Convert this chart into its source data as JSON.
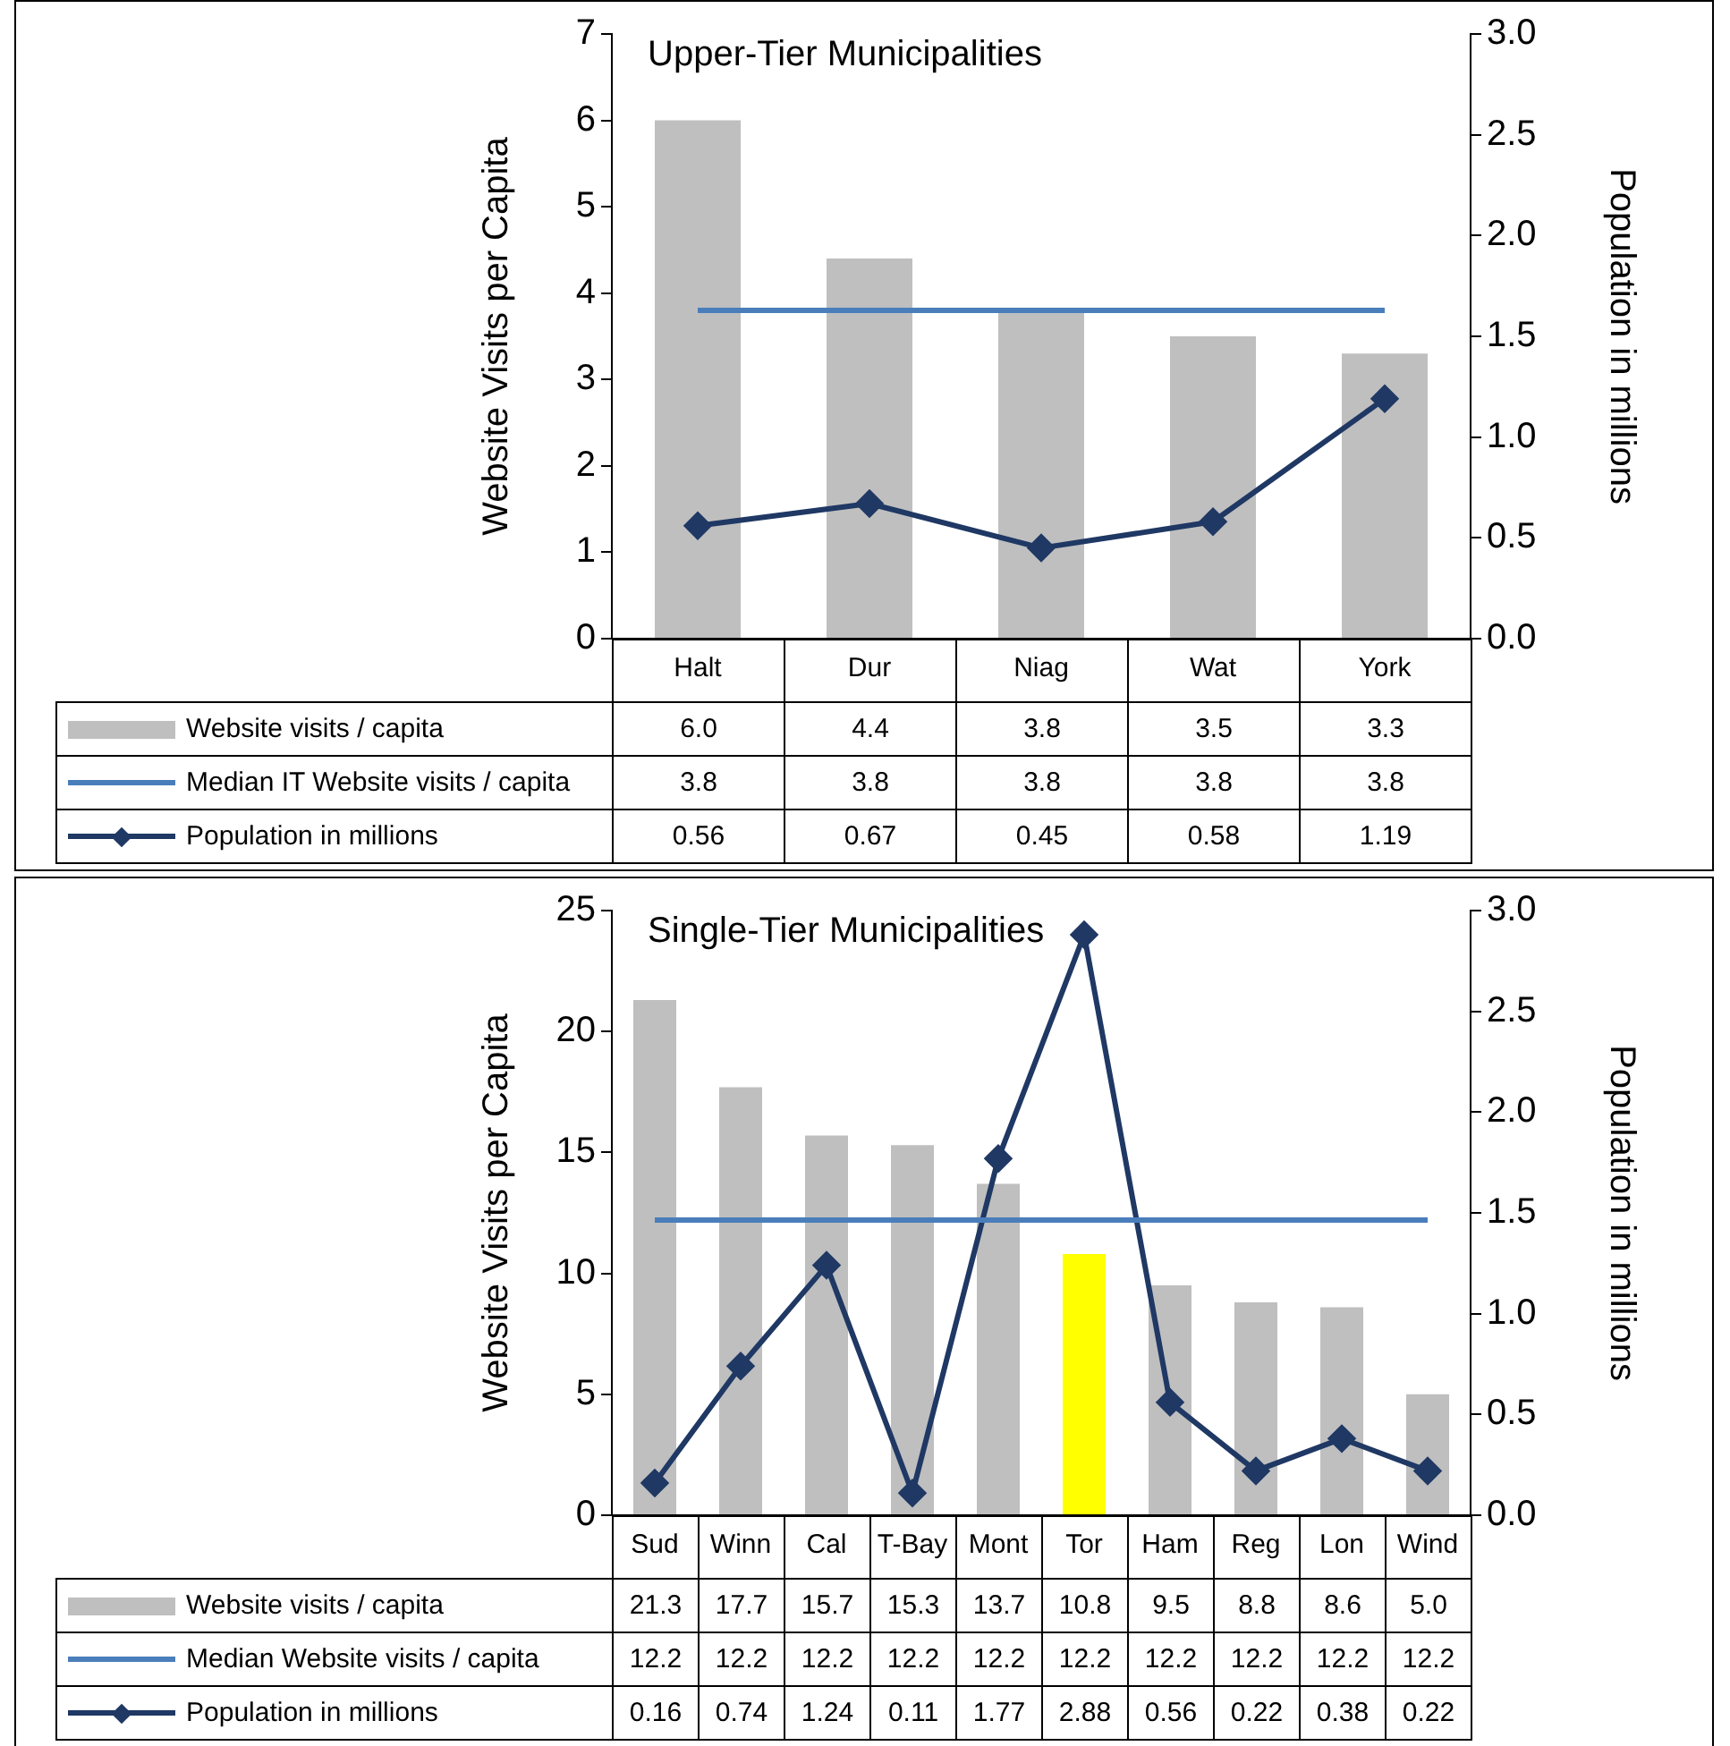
{
  "chart_data": [
    {
      "type": "bar",
      "title": "Upper-Tier Municipalities",
      "ylabel": "Website Visits per Capita",
      "y2label": "Population in millions",
      "legend": "bottom",
      "categories": [
        "Halt",
        "Dur",
        "Niag",
        "Wat",
        "York"
      ],
      "ylim": [
        0,
        7
      ],
      "yticks": [
        0,
        1,
        2,
        3,
        4,
        5,
        6,
        7
      ],
      "y2lim": [
        0,
        3
      ],
      "y2ticks": [
        {
          "value": 0,
          "label": "0.0"
        },
        {
          "value": 0.5,
          "label": "0.5"
        },
        {
          "value": 1,
          "label": "1.0"
        },
        {
          "value": 1.5,
          "label": "1.5"
        },
        {
          "value": 2,
          "label": "2.0"
        },
        {
          "value": 2.5,
          "label": "2.5"
        },
        {
          "value": 3,
          "label": "3.0"
        }
      ],
      "series": [
        {
          "name": "Website visits / capita",
          "color": "#bfbfbf",
          "values": [
            6.0,
            4.4,
            3.8,
            3.5,
            3.3
          ],
          "value_labels": [
            "6.0",
            "4.4",
            "3.8",
            "3.5",
            "3.3"
          ]
        },
        {
          "name": "Median IT Website visits / capita",
          "type": "line",
          "marker": "none",
          "color": "#4a7ebb",
          "values": [
            3.8,
            3.8,
            3.8,
            3.8,
            3.8
          ],
          "value_labels": [
            "3.8",
            "3.8",
            "3.8",
            "3.8",
            "3.8"
          ]
        },
        {
          "name": "Population in millions",
          "type": "line",
          "marker": "diamond",
          "axis": "y2",
          "color": "#1f3864",
          "values": [
            0.56,
            0.67,
            0.45,
            0.58,
            1.19
          ],
          "value_labels": [
            "0.56",
            "0.67",
            "0.45",
            "0.58",
            "1.19"
          ]
        }
      ]
    },
    {
      "type": "bar",
      "title": "Single-Tier Municipalities",
      "ylabel": "Website Visits per Capita",
      "y2label": "Population in millions",
      "legend": "bottom",
      "categories": [
        "Sud",
        "Winn",
        "Cal",
        "T-Bay",
        "Mont",
        "Tor",
        "Ham",
        "Reg",
        "Lon",
        "Wind"
      ],
      "ylim": [
        0,
        25
      ],
      "yticks": [
        0,
        5,
        10,
        15,
        20,
        25
      ],
      "y2lim": [
        0,
        3
      ],
      "y2ticks": [
        {
          "value": 0,
          "label": "0.0"
        },
        {
          "value": 0.5,
          "label": "0.5"
        },
        {
          "value": 1,
          "label": "1.0"
        },
        {
          "value": 1.5,
          "label": "1.5"
        },
        {
          "value": 2,
          "label": "2.0"
        },
        {
          "value": 2.5,
          "label": "2.5"
        },
        {
          "value": 3,
          "label": "3.0"
        }
      ],
      "series": [
        {
          "name": "Website visits / capita",
          "color": "#bfbfbf",
          "colors": [
            "#bfbfbf",
            "#bfbfbf",
            "#bfbfbf",
            "#bfbfbf",
            "#bfbfbf",
            "#ffff00",
            "#bfbfbf",
            "#bfbfbf",
            "#bfbfbf",
            "#bfbfbf"
          ],
          "values": [
            21.3,
            17.7,
            15.7,
            15.3,
            13.7,
            10.8,
            9.5,
            8.8,
            8.6,
            5.0
          ],
          "value_labels": [
            "21.3",
            "17.7",
            "15.7",
            "15.3",
            "13.7",
            "10.8",
            "9.5",
            "8.8",
            "8.6",
            "5.0"
          ]
        },
        {
          "name": "Median Website visits / capita",
          "type": "line",
          "marker": "none",
          "color": "#4a7ebb",
          "values": [
            12.2,
            12.2,
            12.2,
            12.2,
            12.2,
            12.2,
            12.2,
            12.2,
            12.2,
            12.2
          ],
          "value_labels": [
            "12.2",
            "12.2",
            "12.2",
            "12.2",
            "12.2",
            "12.2",
            "12.2",
            "12.2",
            "12.2",
            "12.2"
          ]
        },
        {
          "name": "Population in millions",
          "type": "line",
          "marker": "diamond",
          "axis": "y2",
          "color": "#1f3864",
          "values": [
            0.16,
            0.74,
            1.24,
            0.11,
            1.77,
            2.88,
            0.56,
            0.22,
            0.38,
            0.22
          ],
          "value_labels": [
            "0.16",
            "0.74",
            "1.24",
            "0.11",
            "1.77",
            "2.88",
            "0.56",
            "0.22",
            "0.38",
            "0.22"
          ]
        }
      ]
    }
  ]
}
